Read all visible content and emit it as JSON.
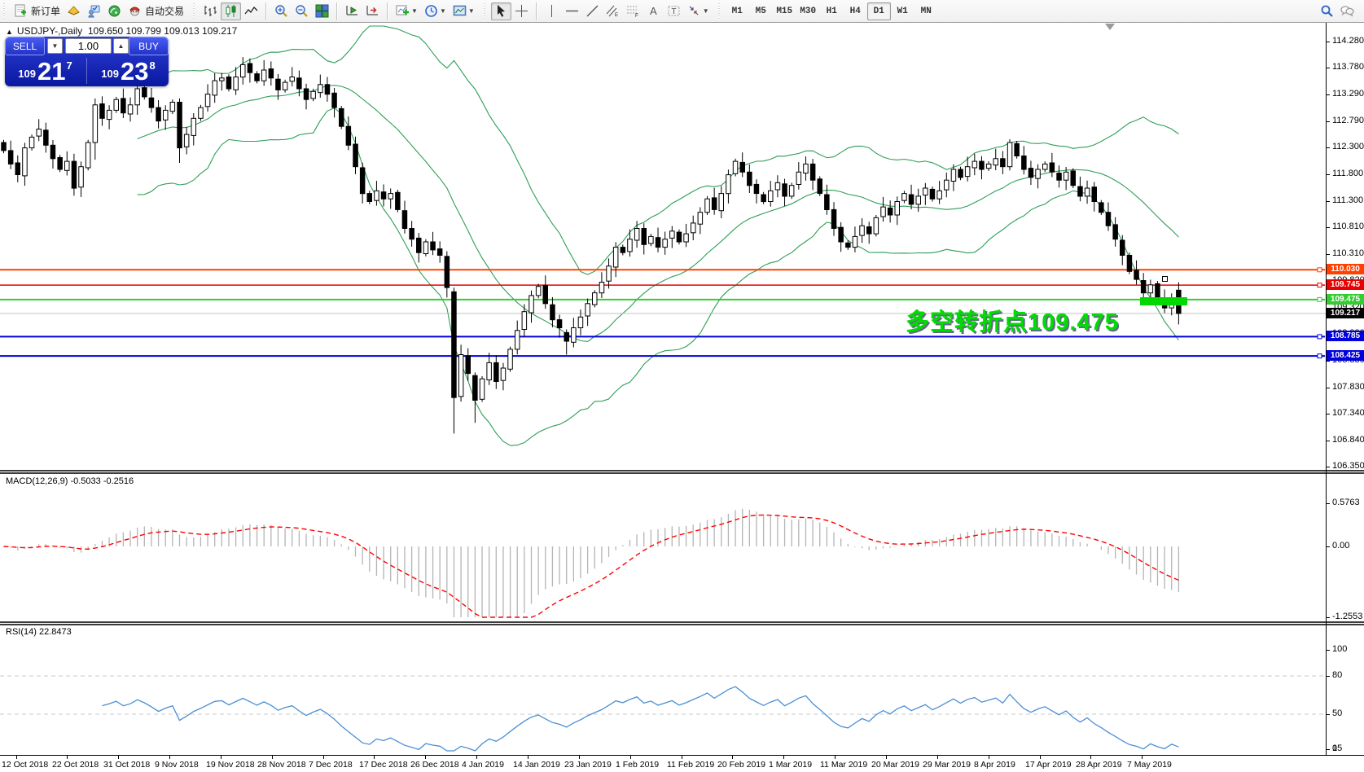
{
  "toolbar": {
    "new_order_label": "新订单",
    "autotrading_label": "自动交易",
    "timeframes": [
      "M1",
      "M5",
      "M15",
      "M30",
      "H1",
      "H4",
      "D1",
      "W1",
      "MN"
    ],
    "active_timeframe": "D1"
  },
  "trade_panel": {
    "sell_label": "SELL",
    "buy_label": "BUY",
    "volume": "1.00",
    "sell_small": "109",
    "sell_big": "21",
    "sell_sup": "7",
    "buy_small": "109",
    "buy_big": "23",
    "buy_sup": "8"
  },
  "chart": {
    "title_symbol": "USDJPY-,Daily",
    "title_ohlc": "109.650 109.799 109.013 109.217",
    "collapse_arrow": "▲",
    "price_ticks": [
      "114.280",
      "113.780",
      "113.290",
      "112.790",
      "112.300",
      "111.800",
      "111.300",
      "110.810",
      "110.310",
      "109.820",
      "109.320",
      "108.830",
      "108.330",
      "107.830",
      "107.340",
      "106.840",
      "106.350"
    ],
    "time_labels": [
      "12 Oct 2018",
      "22 Oct 2018",
      "31 Oct 2018",
      "9 Nov 2018",
      "19 Nov 2018",
      "28 Nov 2018",
      "7 Dec 2018",
      "17 Dec 2018",
      "26 Dec 2018",
      "4 Jan 2019",
      "14 Jan 2019",
      "23 Jan 2019",
      "1 Feb 2019",
      "11 Feb 2019",
      "20 Feb 2019",
      "1 Mar 2019",
      "11 Mar 2019",
      "20 Mar 2019",
      "29 Mar 2019",
      "8 Apr 2019",
      "17 Apr 2019",
      "28 Apr 2019",
      "7 May 2019"
    ],
    "bid": {
      "label": "109.217",
      "color": "#000000",
      "line_color": "#c0c0c0",
      "price": 109.217
    },
    "hlines": [
      {
        "label": "110.030",
        "price": 110.03,
        "color": "#ff4000",
        "width": 2
      },
      {
        "label": "109.745",
        "price": 109.745,
        "color": "#e80000",
        "width": 1.5
      },
      {
        "label": "109.475",
        "price": 109.475,
        "color": "#33cc33",
        "width": 2
      },
      {
        "label": "108.785",
        "price": 108.785,
        "color": "#0000dd",
        "width": 2
      },
      {
        "label": "108.425",
        "price": 108.425,
        "color": "#0000dd",
        "width": 2
      }
    ]
  },
  "annotation": {
    "text": "多空转折点109.475",
    "color": "#00dd00"
  },
  "macd": {
    "label": "MACD(12,26,9) -0.5033 -0.2516",
    "axis_ticks": [
      {
        "label": "0.5763",
        "value": 0.5763
      },
      {
        "label": "0.00",
        "value": 0
      },
      {
        "label": "-1.2553",
        "value": -1.2553
      }
    ],
    "main_value": -0.5033,
    "signal_value": -0.2516,
    "histogram_color": "#b4b4b4",
    "signal_color": "#ff0000"
  },
  "rsi": {
    "label": "RSI(14) 22.8473",
    "value": 22.8473,
    "axis_ticks": [
      {
        "label": "100",
        "value": 100
      },
      {
        "label": "80",
        "value": 80
      },
      {
        "label": "50",
        "value": 50
      },
      {
        "label": "15",
        "value": 15
      },
      {
        "label": "0",
        "value": 0
      }
    ],
    "levels": [
      80,
      50,
      15
    ],
    "line_color": "#4a8fd4"
  },
  "chart_data": {
    "type": "candlestick",
    "symbol": "USDJPY-",
    "timeframe": "Daily",
    "current_ohlc": {
      "open": 109.65,
      "high": 109.799,
      "low": 109.013,
      "close": 109.217
    },
    "price_axis_range": [
      106.35,
      114.28
    ],
    "indicators": {
      "bollinger": {
        "period": 20,
        "deviation": 2,
        "color": "#2f9e57"
      },
      "macd": {
        "fast": 12,
        "slow": 26,
        "signal": 9
      },
      "rsi": {
        "period": 14
      }
    },
    "closes": [
      112.25,
      112.0,
      111.8,
      112.3,
      112.5,
      112.65,
      112.35,
      112.1,
      111.9,
      112.05,
      111.55,
      111.95,
      112.4,
      113.1,
      112.85,
      113.0,
      113.2,
      112.95,
      113.1,
      113.4,
      113.25,
      113.05,
      112.8,
      113.0,
      113.15,
      112.3,
      112.55,
      112.85,
      113.05,
      113.3,
      113.55,
      113.6,
      113.4,
      113.62,
      113.85,
      113.7,
      113.55,
      113.75,
      113.6,
      113.38,
      113.52,
      113.62,
      113.4,
      113.2,
      113.35,
      113.48,
      113.3,
      113.05,
      112.7,
      112.35,
      111.95,
      111.45,
      111.3,
      111.5,
      111.35,
      111.45,
      111.15,
      110.8,
      110.6,
      110.35,
      110.55,
      110.4,
      110.3,
      109.7,
      107.65,
      108.45,
      108.1,
      107.6,
      108.0,
      108.3,
      107.95,
      108.2,
      108.55,
      108.9,
      109.25,
      109.55,
      109.72,
      109.4,
      109.1,
      108.95,
      108.7,
      108.95,
      109.15,
      109.4,
      109.6,
      109.8,
      110.1,
      110.45,
      110.35,
      110.6,
      110.8,
      110.5,
      110.65,
      110.45,
      110.6,
      110.75,
      110.55,
      110.7,
      110.9,
      111.1,
      111.35,
      111.15,
      111.45,
      111.8,
      112.05,
      111.85,
      111.6,
      111.45,
      111.3,
      111.5,
      111.65,
      111.4,
      111.6,
      111.85,
      112.0,
      111.7,
      111.45,
      111.15,
      110.8,
      110.55,
      110.45,
      110.65,
      110.85,
      110.7,
      111.0,
      111.2,
      111.05,
      111.3,
      111.45,
      111.25,
      111.4,
      111.55,
      111.35,
      111.5,
      111.7,
      111.9,
      111.75,
      111.95,
      112.05,
      111.9,
      112.0,
      112.1,
      111.95,
      112.4,
      112.15,
      111.9,
      111.75,
      111.9,
      112.0,
      111.85,
      111.7,
      111.85,
      111.6,
      111.4,
      111.55,
      111.3,
      111.1,
      110.85,
      110.6,
      110.3,
      110.0,
      109.85,
      109.6,
      109.75,
      109.5,
      109.32,
      109.45,
      109.217
    ],
    "overrides": {
      "13": [
        112.4,
        113.22,
        112.08,
        113.1
      ],
      "25": [
        113.15,
        113.22,
        112.02,
        112.3
      ],
      "64": [
        109.62,
        109.7,
        106.98,
        107.65
      ],
      "67": [
        108.06,
        108.12,
        107.18,
        107.6
      ],
      "80": [
        108.86,
        108.92,
        108.45,
        108.7
      ],
      "143": [
        111.95,
        112.46,
        111.88,
        112.4
      ],
      "167": [
        109.65,
        109.799,
        109.013,
        109.217
      ]
    }
  }
}
